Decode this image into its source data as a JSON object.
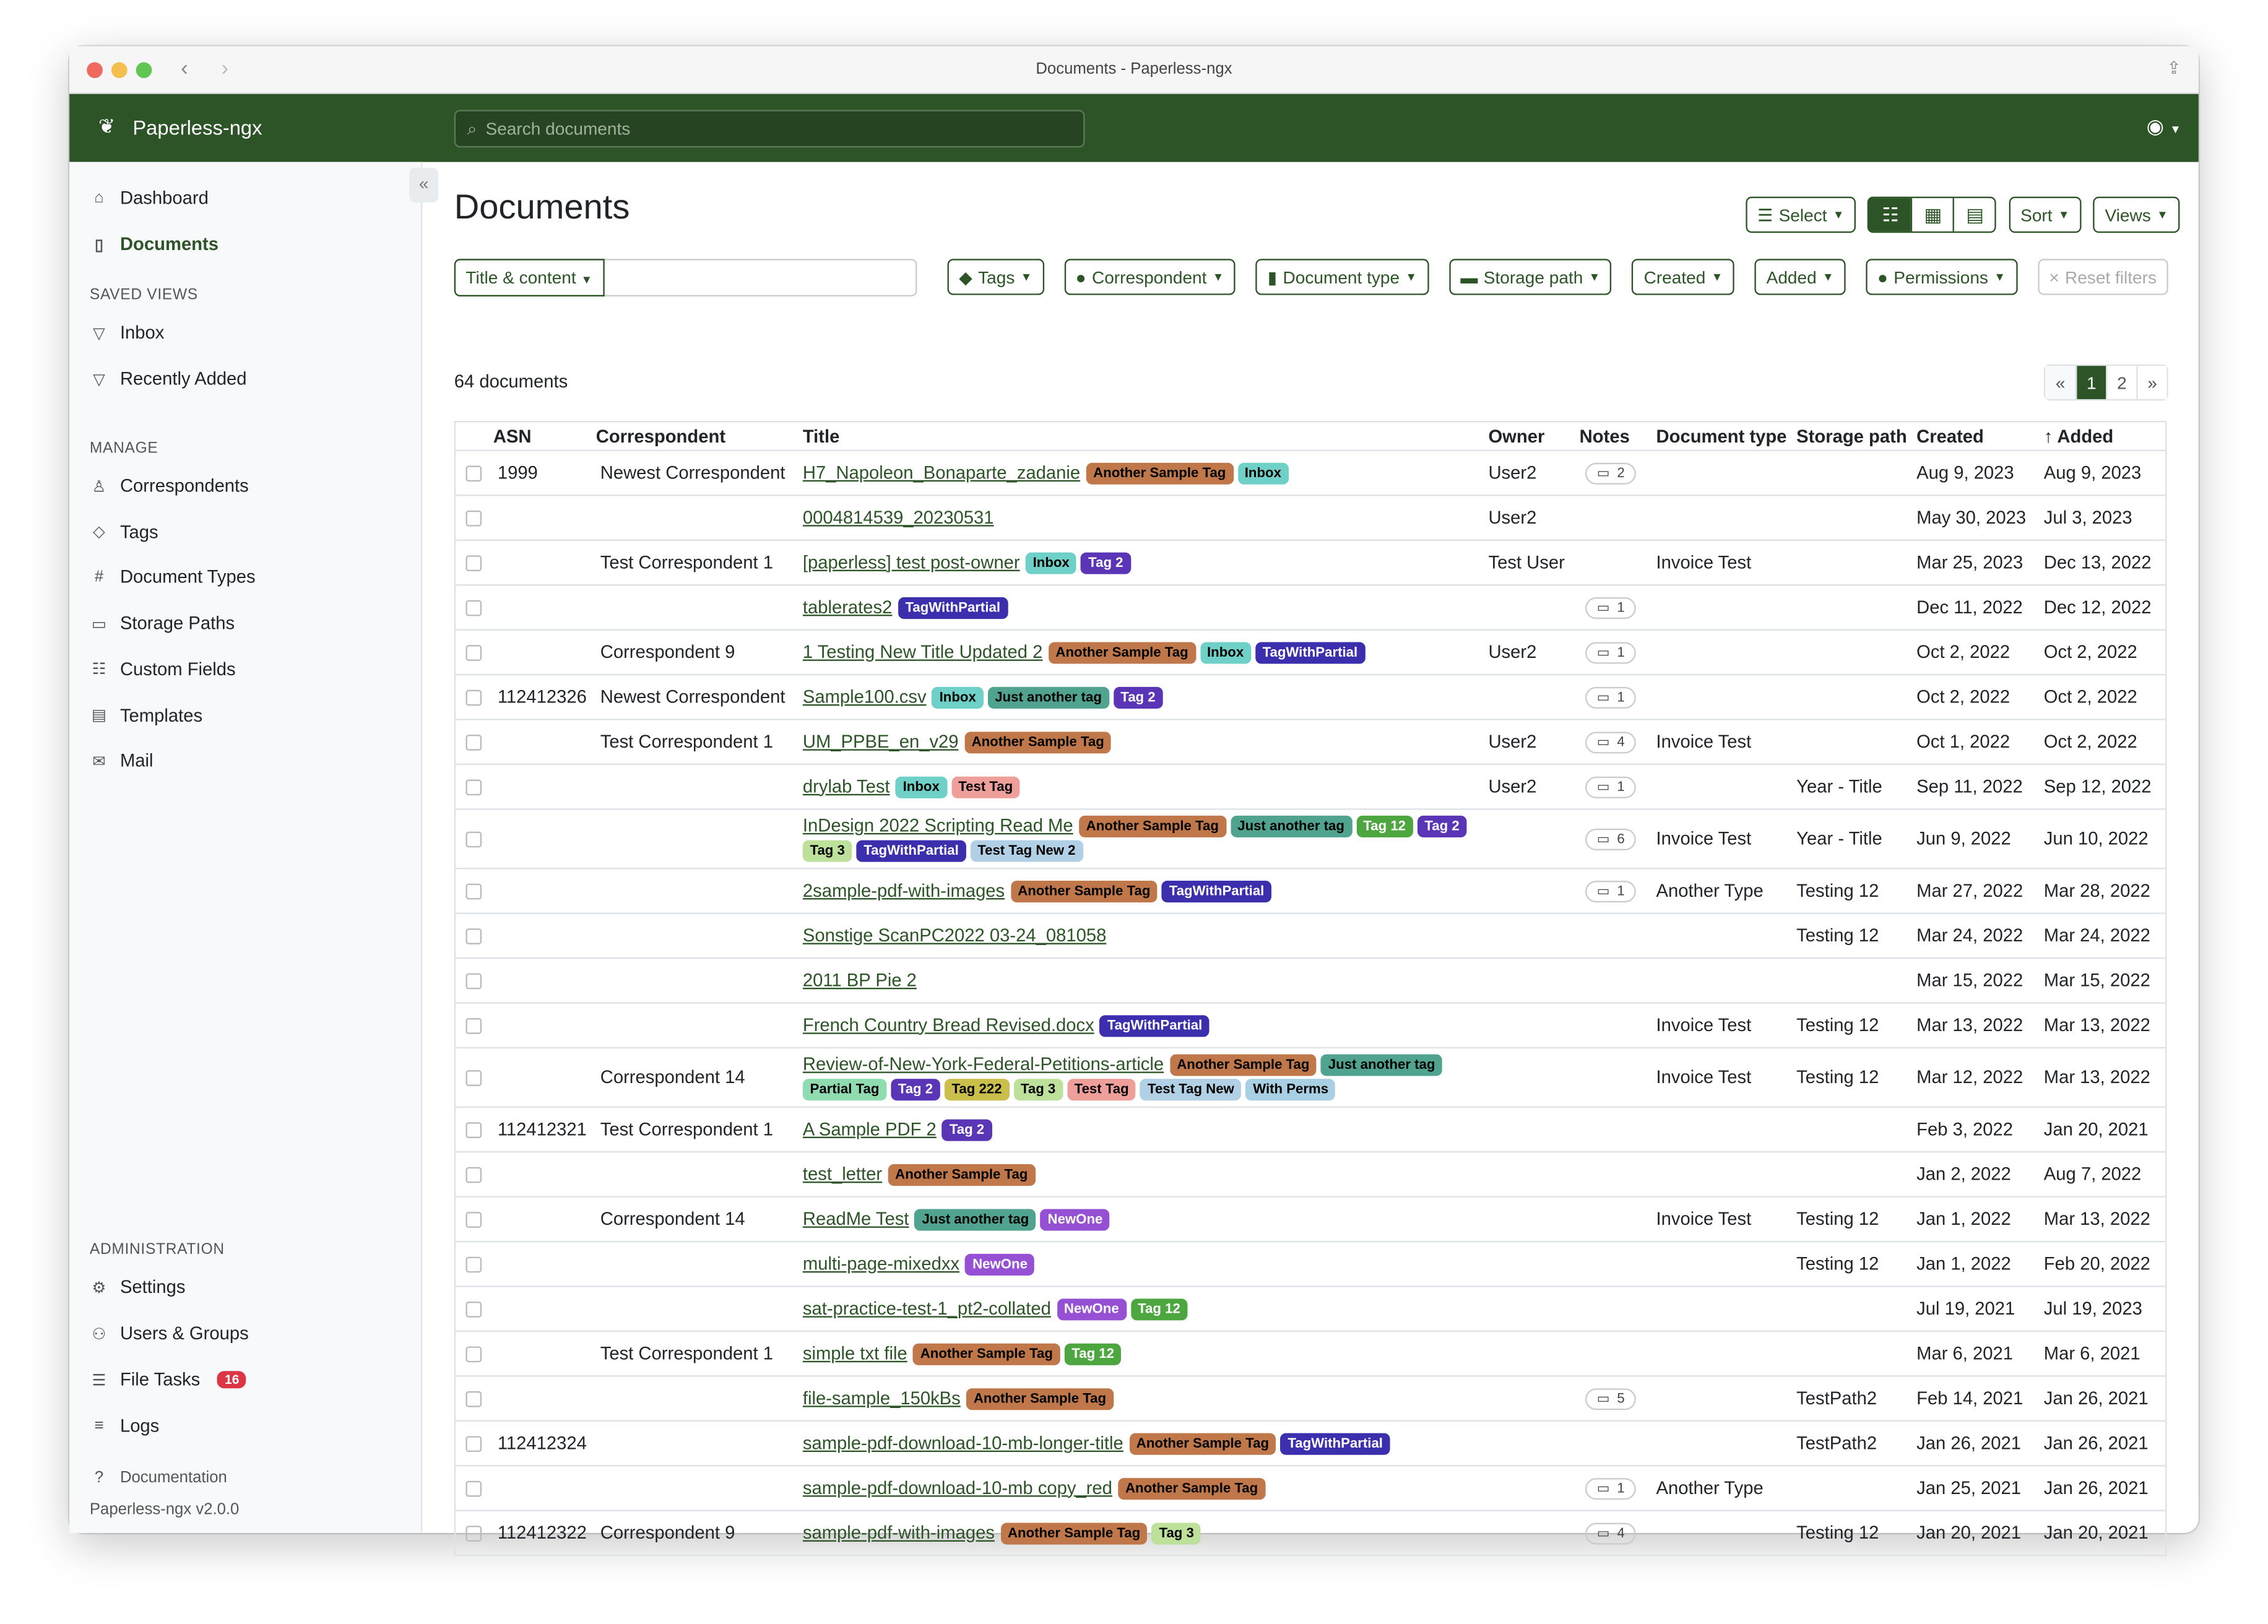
{
  "window": {
    "title": "Documents - Paperless-ngx"
  },
  "colors": {
    "primary": "#2c5427",
    "danger": "#dc3545"
  },
  "header": {
    "brand": "Paperless-ngx",
    "search_placeholder": "Search documents"
  },
  "sidebar": {
    "items": [
      {
        "label": "Dashboard",
        "icon": "house-icon"
      },
      {
        "label": "Documents",
        "icon": "files-icon",
        "active": true
      }
    ],
    "saved_views_heading": "SAVED VIEWS",
    "saved_views": [
      {
        "label": "Inbox",
        "icon": "funnel-icon"
      },
      {
        "label": "Recently Added",
        "icon": "funnel-icon"
      }
    ],
    "manage_heading": "MANAGE",
    "manage": [
      {
        "label": "Correspondents",
        "icon": "person-icon"
      },
      {
        "label": "Tags",
        "icon": "tags-icon"
      },
      {
        "label": "Document Types",
        "icon": "hash-icon"
      },
      {
        "label": "Storage Paths",
        "icon": "folder-icon"
      },
      {
        "label": "Custom Fields",
        "icon": "ui-radios-icon"
      },
      {
        "label": "Templates",
        "icon": "file-text-icon"
      },
      {
        "label": "Mail",
        "icon": "envelope-icon"
      }
    ],
    "admin_heading": "ADMINISTRATION",
    "admin": [
      {
        "label": "Settings",
        "icon": "gear-icon"
      },
      {
        "label": "Users & Groups",
        "icon": "people-icon"
      },
      {
        "label": "File Tasks",
        "icon": "list-icon",
        "badge": "16"
      },
      {
        "label": "Logs",
        "icon": "text-lines-icon"
      }
    ],
    "documentation": "Documentation",
    "version": "Paperless-ngx v2.0.0"
  },
  "main": {
    "title": "Documents",
    "toolbar": {
      "select": "Select",
      "sort": "Sort",
      "views": "Views"
    },
    "filters": {
      "text_mode": "Title & content",
      "text_value": "",
      "tags": "Tags",
      "correspondent": "Correspondent",
      "document_type": "Document type",
      "storage_path": "Storage path",
      "created": "Created",
      "added": "Added",
      "permissions": "Permissions",
      "reset": "Reset filters"
    },
    "count": "64 documents",
    "pagination": {
      "prev": "«",
      "pages": [
        "1",
        "2"
      ],
      "current": "1",
      "next": "»"
    }
  },
  "table": {
    "columns": [
      "ASN",
      "Correspondent",
      "Title",
      "Owner",
      "Notes",
      "Document type",
      "Storage path",
      "Created",
      "Added"
    ],
    "sorted_by": "Added",
    "rows": [
      {
        "asn": "1999",
        "corr": "Newest Correspondent",
        "title": "H7_Napoleon_Bonaparte_zadanie",
        "tags": [
          "Another Sample Tag",
          "Inbox"
        ],
        "owner": "User2",
        "notes": "2",
        "type": "",
        "path": "",
        "created": "Aug 9, 2023",
        "added": "Aug 9, 2023"
      },
      {
        "asn": "",
        "corr": "",
        "title": "0004814539_20230531",
        "tags": [],
        "owner": "User2",
        "notes": "",
        "type": "",
        "path": "",
        "created": "May 30, 2023",
        "added": "Jul 3, 2023"
      },
      {
        "asn": "",
        "corr": "Test Correspondent 1",
        "title": "[paperless] test post-owner",
        "tags": [
          "Inbox",
          "Tag 2"
        ],
        "owner": "Test User",
        "notes": "",
        "type": "Invoice Test",
        "path": "",
        "created": "Mar 25, 2023",
        "added": "Dec 13, 2022"
      },
      {
        "asn": "",
        "corr": "",
        "title": "tablerates2",
        "tags": [
          "TagWithPartial"
        ],
        "owner": "",
        "notes": "1",
        "type": "",
        "path": "",
        "created": "Dec 11, 2022",
        "added": "Dec 12, 2022"
      },
      {
        "asn": "",
        "corr": "Correspondent 9",
        "title": "1 Testing New Title Updated 2",
        "tags": [
          "Another Sample Tag",
          "Inbox",
          "TagWithPartial"
        ],
        "owner": "User2",
        "notes": "1",
        "type": "",
        "path": "",
        "created": "Oct 2, 2022",
        "added": "Oct 2, 2022"
      },
      {
        "asn": "112412326",
        "corr": "Newest Correspondent",
        "title": "Sample100.csv",
        "tags": [
          "Inbox",
          "Just another tag",
          "Tag 2"
        ],
        "owner": "",
        "notes": "1",
        "type": "",
        "path": "",
        "created": "Oct 2, 2022",
        "added": "Oct 2, 2022"
      },
      {
        "asn": "",
        "corr": "Test Correspondent 1",
        "title": "UM_PPBE_en_v29",
        "tags": [
          "Another Sample Tag"
        ],
        "owner": "User2",
        "notes": "4",
        "type": "Invoice Test",
        "path": "",
        "created": "Oct 1, 2022",
        "added": "Oct 2, 2022"
      },
      {
        "asn": "",
        "corr": "",
        "title": "drylab Test",
        "tags": [
          "Inbox",
          "Test Tag"
        ],
        "owner": "User2",
        "notes": "1",
        "type": "",
        "path": "Year - Title",
        "created": "Sep 11, 2022",
        "added": "Sep 12, 2022"
      },
      {
        "asn": "",
        "corr": "",
        "title": "InDesign 2022 Scripting Read Me",
        "tags": [
          "Another Sample Tag",
          "Just another tag",
          "Tag 12",
          "Tag 2",
          "Tag 3",
          "TagWithPartial",
          "Test Tag New 2"
        ],
        "owner": "",
        "notes": "6",
        "type": "Invoice Test",
        "path": "Year - Title",
        "created": "Jun 9, 2022",
        "added": "Jun 10, 2022"
      },
      {
        "asn": "",
        "corr": "",
        "title": "2sample-pdf-with-images",
        "tags": [
          "Another Sample Tag",
          "TagWithPartial"
        ],
        "owner": "",
        "notes": "1",
        "type": "Another Type",
        "path": "Testing 12",
        "created": "Mar 27, 2022",
        "added": "Mar 28, 2022"
      },
      {
        "asn": "",
        "corr": "",
        "title": "Sonstige ScanPC2022 03-24_081058",
        "tags": [],
        "owner": "",
        "notes": "",
        "type": "",
        "path": "Testing 12",
        "created": "Mar 24, 2022",
        "added": "Mar 24, 2022"
      },
      {
        "asn": "",
        "corr": "",
        "title": "2011 BP Pie 2",
        "tags": [],
        "owner": "",
        "notes": "",
        "type": "",
        "path": "",
        "created": "Mar 15, 2022",
        "added": "Mar 15, 2022"
      },
      {
        "asn": "",
        "corr": "",
        "title": "French Country Bread Revised.docx",
        "tags": [
          "TagWithPartial"
        ],
        "owner": "",
        "notes": "",
        "type": "Invoice Test",
        "path": "Testing 12",
        "created": "Mar 13, 2022",
        "added": "Mar 13, 2022"
      },
      {
        "asn": "",
        "corr": "Correspondent 14",
        "title": "Review-of-New-York-Federal-Petitions-article",
        "tags": [
          "Another Sample Tag",
          "Just another tag",
          "Partial Tag",
          "Tag 2",
          "Tag 222",
          "Tag 3",
          "Test Tag",
          "Test Tag New",
          "With Perms"
        ],
        "owner": "",
        "notes": "",
        "type": "Invoice Test",
        "path": "Testing 12",
        "created": "Mar 12, 2022",
        "added": "Mar 13, 2022"
      },
      {
        "asn": "112412321",
        "corr": "Test Correspondent 1",
        "title": "A Sample PDF 2",
        "tags": [
          "Tag 2"
        ],
        "owner": "",
        "notes": "",
        "type": "",
        "path": "",
        "created": "Feb 3, 2022",
        "added": "Jan 20, 2021"
      },
      {
        "asn": "",
        "corr": "",
        "title": "test_letter",
        "tags": [
          "Another Sample Tag"
        ],
        "owner": "",
        "notes": "",
        "type": "",
        "path": "",
        "created": "Jan 2, 2022",
        "added": "Aug 7, 2022"
      },
      {
        "asn": "",
        "corr": "Correspondent 14",
        "title": "ReadMe Test",
        "tags": [
          "Just another tag",
          "NewOne"
        ],
        "owner": "",
        "notes": "",
        "type": "Invoice Test",
        "path": "Testing 12",
        "created": "Jan 1, 2022",
        "added": "Mar 13, 2022"
      },
      {
        "asn": "",
        "corr": "",
        "title": "multi-page-mixedxx",
        "tags": [
          "NewOne"
        ],
        "owner": "",
        "notes": "",
        "type": "",
        "path": "Testing 12",
        "created": "Jan 1, 2022",
        "added": "Feb 20, 2022"
      },
      {
        "asn": "",
        "corr": "",
        "title": "sat-practice-test-1_pt2-collated",
        "tags": [
          "NewOne",
          "Tag 12"
        ],
        "owner": "",
        "notes": "",
        "type": "",
        "path": "",
        "created": "Jul 19, 2021",
        "added": "Jul 19, 2023"
      },
      {
        "asn": "",
        "corr": "Test Correspondent 1",
        "title": "simple txt file",
        "tags": [
          "Another Sample Tag",
          "Tag 12"
        ],
        "owner": "",
        "notes": "",
        "type": "",
        "path": "",
        "created": "Mar 6, 2021",
        "added": "Mar 6, 2021"
      },
      {
        "asn": "",
        "corr": "",
        "title": "file-sample_150kBs",
        "tags": [
          "Another Sample Tag"
        ],
        "owner": "",
        "notes": "5",
        "type": "",
        "path": "TestPath2",
        "created": "Feb 14, 2021",
        "added": "Jan 26, 2021"
      },
      {
        "asn": "112412324",
        "corr": "",
        "title": "sample-pdf-download-10-mb-longer-title",
        "tags": [
          "Another Sample Tag",
          "TagWithPartial"
        ],
        "owner": "",
        "notes": "",
        "type": "",
        "path": "TestPath2",
        "created": "Jan 26, 2021",
        "added": "Jan 26, 2021"
      },
      {
        "asn": "",
        "corr": "",
        "title": "sample-pdf-download-10-mb copy_red",
        "tags": [
          "Another Sample Tag"
        ],
        "owner": "",
        "notes": "1",
        "type": "Another Type",
        "path": "",
        "created": "Jan 25, 2021",
        "added": "Jan 26, 2021"
      },
      {
        "asn": "112412322",
        "corr": "Correspondent 9",
        "title": "sample-pdf-with-images",
        "tags": [
          "Another Sample Tag",
          "Tag 3"
        ],
        "owner": "",
        "notes": "4",
        "type": "",
        "path": "Testing 12",
        "created": "Jan 20, 2021",
        "added": "Jan 20, 2021"
      }
    ]
  },
  "tag_colors": {
    "Another Sample Tag": {
      "bg": "#c0784a",
      "fg": "#000000"
    },
    "Inbox": {
      "bg": "#6fd0c8",
      "fg": "#000000"
    },
    "Tag 2": {
      "bg": "#5a35b5",
      "fg": "#ffffff"
    },
    "TagWithPartial": {
      "bg": "#3b2fad",
      "fg": "#ffffff"
    },
    "Just another tag": {
      "bg": "#50a38f",
      "fg": "#000000"
    },
    "Test Tag": {
      "bg": "#ef9f9a",
      "fg": "#000000"
    },
    "Tag 12": {
      "bg": "#4ea641",
      "fg": "#ffffff"
    },
    "Tag 3": {
      "bg": "#bde09a",
      "fg": "#000000"
    },
    "Test Tag New 2": {
      "bg": "#b1d0e6",
      "fg": "#000000"
    },
    "Test Tag New": {
      "bg": "#b1d0e6",
      "fg": "#000000"
    },
    "With Perms": {
      "bg": "#a9cfe5",
      "fg": "#000000"
    },
    "Partial Tag": {
      "bg": "#8fdcb0",
      "fg": "#000000"
    },
    "Tag 222": {
      "bg": "#cbbf4c",
      "fg": "#000000"
    },
    "NewOne": {
      "bg": "#9650d4",
      "fg": "#ffffff"
    }
  }
}
